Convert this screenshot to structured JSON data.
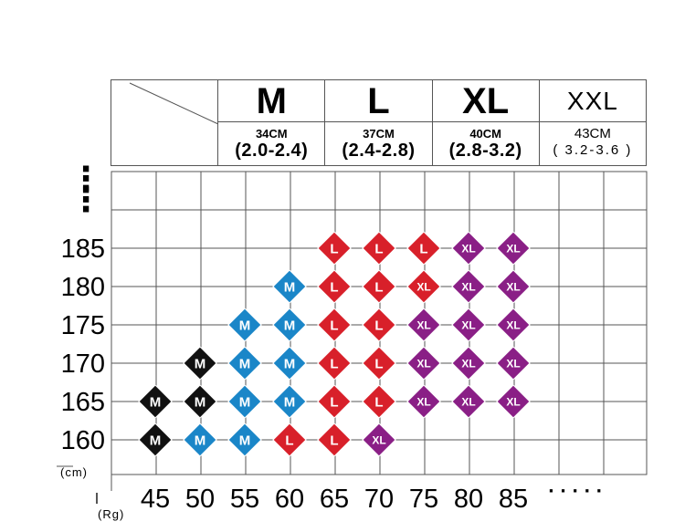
{
  "size_header": [
    {
      "size": "M",
      "chest": "34CM",
      "range": "(2.0-2.4)",
      "style": "bold"
    },
    {
      "size": "L",
      "chest": "37CM",
      "range": "(2.4-2.8)",
      "style": "bold"
    },
    {
      "size": "XL",
      "chest": "40CM",
      "range": "(2.8-3.2)",
      "style": "bold"
    },
    {
      "size": "XXL",
      "chest": "43CM",
      "range": "( 3.2-3.6 )",
      "style": "light"
    }
  ],
  "axis": {
    "y_unit": "(cm)",
    "x_unit": "(Rg)",
    "x_more": "· · · · ·",
    "y_more": "⋮"
  },
  "colors": {
    "M_dark": "#111111",
    "M_blue": "#1a86c8",
    "L": "#d8202a",
    "XL": "#8a1f86",
    "grid": "#555555"
  },
  "chart_data": {
    "type": "table",
    "title": "",
    "xlabel": "(Rg)",
    "ylabel": "(cm)",
    "x_ticks": [
      "45",
      "50",
      "55",
      "60",
      "65",
      "70",
      "75",
      "80",
      "85"
    ],
    "y_ticks": [
      "185",
      "180",
      "175",
      "170",
      "165",
      "160"
    ],
    "cells": [
      {
        "x": 45,
        "y": 165,
        "size": "M",
        "color": "M_dark"
      },
      {
        "x": 45,
        "y": 160,
        "size": "M",
        "color": "M_dark"
      },
      {
        "x": 50,
        "y": 170,
        "size": "M",
        "color": "M_dark"
      },
      {
        "x": 50,
        "y": 165,
        "size": "M",
        "color": "M_dark"
      },
      {
        "x": 50,
        "y": 160,
        "size": "M",
        "color": "M_blue"
      },
      {
        "x": 55,
        "y": 175,
        "size": "M",
        "color": "M_blue"
      },
      {
        "x": 55,
        "y": 170,
        "size": "M",
        "color": "M_blue"
      },
      {
        "x": 55,
        "y": 165,
        "size": "M",
        "color": "M_blue"
      },
      {
        "x": 55,
        "y": 160,
        "size": "M",
        "color": "M_blue"
      },
      {
        "x": 60,
        "y": 180,
        "size": "M",
        "color": "M_blue"
      },
      {
        "x": 60,
        "y": 175,
        "size": "M",
        "color": "M_blue"
      },
      {
        "x": 60,
        "y": 170,
        "size": "M",
        "color": "M_blue"
      },
      {
        "x": 60,
        "y": 165,
        "size": "M",
        "color": "M_blue"
      },
      {
        "x": 60,
        "y": 160,
        "size": "L",
        "color": "L"
      },
      {
        "x": 65,
        "y": 185,
        "size": "L",
        "color": "L"
      },
      {
        "x": 65,
        "y": 180,
        "size": "L",
        "color": "L"
      },
      {
        "x": 65,
        "y": 175,
        "size": "L",
        "color": "L"
      },
      {
        "x": 65,
        "y": 170,
        "size": "L",
        "color": "L"
      },
      {
        "x": 65,
        "y": 165,
        "size": "L",
        "color": "L"
      },
      {
        "x": 65,
        "y": 160,
        "size": "L",
        "color": "L"
      },
      {
        "x": 70,
        "y": 185,
        "size": "L",
        "color": "L"
      },
      {
        "x": 70,
        "y": 180,
        "size": "L",
        "color": "L"
      },
      {
        "x": 70,
        "y": 175,
        "size": "L",
        "color": "L"
      },
      {
        "x": 70,
        "y": 170,
        "size": "L",
        "color": "L"
      },
      {
        "x": 70,
        "y": 165,
        "size": "L",
        "color": "L"
      },
      {
        "x": 70,
        "y": 160,
        "size": "XL",
        "color": "XL"
      },
      {
        "x": 75,
        "y": 185,
        "size": "L",
        "color": "L"
      },
      {
        "x": 75,
        "y": 180,
        "size": "XL",
        "color": "L"
      },
      {
        "x": 75,
        "y": 175,
        "size": "XL",
        "color": "XL"
      },
      {
        "x": 75,
        "y": 170,
        "size": "XL",
        "color": "XL"
      },
      {
        "x": 75,
        "y": 165,
        "size": "XL",
        "color": "XL"
      },
      {
        "x": 80,
        "y": 185,
        "size": "XL",
        "color": "XL"
      },
      {
        "x": 80,
        "y": 180,
        "size": "XL",
        "color": "XL"
      },
      {
        "x": 80,
        "y": 175,
        "size": "XL",
        "color": "XL"
      },
      {
        "x": 80,
        "y": 170,
        "size": "XL",
        "color": "XL"
      },
      {
        "x": 80,
        "y": 165,
        "size": "XL",
        "color": "XL"
      },
      {
        "x": 85,
        "y": 185,
        "size": "XL",
        "color": "XL"
      },
      {
        "x": 85,
        "y": 180,
        "size": "XL",
        "color": "XL"
      },
      {
        "x": 85,
        "y": 175,
        "size": "XL",
        "color": "XL"
      },
      {
        "x": 85,
        "y": 170,
        "size": "XL",
        "color": "XL"
      },
      {
        "x": 85,
        "y": 165,
        "size": "XL",
        "color": "XL"
      }
    ]
  }
}
